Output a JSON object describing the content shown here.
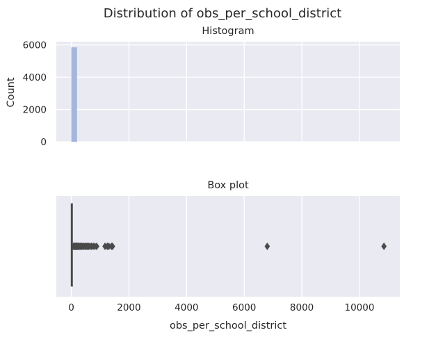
{
  "chart_data": {
    "title": "Distribution of obs_per_school_district",
    "colors": {
      "plot_bg": "#eaeaf2",
      "grid": "#ffffff",
      "hist_bar": "#a5b6dc",
      "box_line": "#4a4a4a"
    },
    "shared_x": {
      "label": "obs_per_school_district",
      "ticks": [
        0,
        2000,
        4000,
        6000,
        8000,
        10000
      ],
      "xlim": [
        -520,
        11400
      ]
    },
    "charts": [
      {
        "type": "bar",
        "subtitle": "Histogram",
        "ylabel": "Count",
        "yticks": [
          0,
          2000,
          4000,
          6000
        ],
        "ylim": [
          0,
          6200
        ],
        "bins": [
          {
            "x0": 0,
            "x1": 200,
            "count": 5850
          }
        ]
      },
      {
        "type": "box",
        "subtitle": "Box plot",
        "q1": 5,
        "median": 12,
        "q3": 30,
        "whisker_low": 1,
        "whisker_high": 70,
        "outliers": [
          75,
          85,
          95,
          110,
          125,
          140,
          160,
          180,
          200,
          220,
          245,
          270,
          300,
          330,
          360,
          400,
          440,
          480,
          520,
          560,
          600,
          650,
          700,
          760,
          820,
          880,
          1170,
          1250,
          1300,
          1390,
          1430,
          6800,
          10850
        ]
      }
    ]
  }
}
